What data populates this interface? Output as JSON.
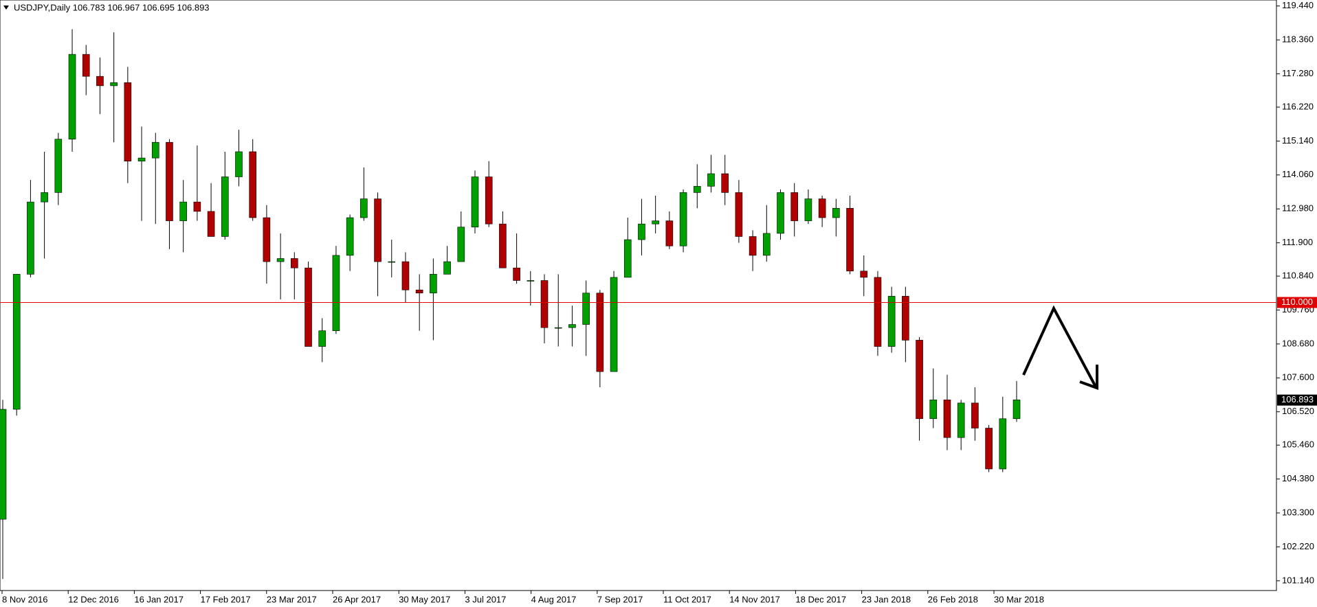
{
  "chart_data": {
    "type": "candlestick",
    "title": "USDJPY,Daily  106.783 106.967 106.695 106.893",
    "xticks": [
      "8 Nov 2016",
      "12 Dec 2016",
      "16 Jan 2017",
      "17 Feb 2017",
      "23 Mar 2017",
      "26 Apr 2017",
      "30 May 2017",
      "3 Jul 2017",
      "4 Aug 2017",
      "7 Sep 2017",
      "11 Oct 2017",
      "14 Nov 2017",
      "18 Dec 2017",
      "23 Jan 2018",
      "26 Feb 2018",
      "30 Mar 2018"
    ],
    "open": [
      103.1,
      106.6,
      110.9,
      113.2,
      113.5,
      115.2,
      117.9,
      117.2,
      116.9,
      117.0,
      114.5,
      114.6,
      115.1,
      112.6,
      113.2,
      112.9,
      112.1,
      114.0,
      114.8,
      112.7,
      111.3,
      111.4,
      111.1,
      108.6,
      109.1,
      111.5,
      112.7,
      113.3,
      111.3,
      111.3,
      110.4,
      110.3,
      110.9,
      111.3,
      112.4,
      114.0,
      112.5,
      111.1,
      110.7,
      110.7,
      109.2,
      109.2,
      109.3,
      110.3,
      107.8,
      110.8,
      112.0,
      112.5,
      112.6,
      111.8,
      113.5,
      113.7,
      114.1,
      113.5,
      112.1,
      111.5,
      112.2,
      113.5,
      112.6,
      113.3,
      112.7,
      113.0,
      111.0,
      110.8,
      108.6,
      110.2,
      108.8,
      106.3,
      106.9,
      105.7,
      106.8,
      106.0,
      104.7,
      106.3
    ],
    "high": [
      106.9,
      110.9,
      113.9,
      114.8,
      115.4,
      118.7,
      118.2,
      117.8,
      118.6,
      117.5,
      115.6,
      115.4,
      115.2,
      113.9,
      115.0,
      113.8,
      114.8,
      115.5,
      115.2,
      113.1,
      112.2,
      111.6,
      111.3,
      109.5,
      111.8,
      112.8,
      114.3,
      113.5,
      112.0,
      111.6,
      110.9,
      111.4,
      111.8,
      112.9,
      114.2,
      114.5,
      112.9,
      112.2,
      111.0,
      110.9,
      110.9,
      109.9,
      110.7,
      110.4,
      111.0,
      112.7,
      113.3,
      113.4,
      112.9,
      113.6,
      114.4,
      114.7,
      114.7,
      113.9,
      112.3,
      113.1,
      113.6,
      113.8,
      113.6,
      113.4,
      113.3,
      113.4,
      111.5,
      111.0,
      110.5,
      110.5,
      108.9,
      107.9,
      107.7,
      106.9,
      107.3,
      106.1,
      107.0,
      107.5
    ],
    "low": [
      101.2,
      106.4,
      110.8,
      111.4,
      113.1,
      114.8,
      116.6,
      116.0,
      115.1,
      113.8,
      112.6,
      112.5,
      111.7,
      111.6,
      112.6,
      112.1,
      112.0,
      113.7,
      112.6,
      110.6,
      110.1,
      110.1,
      108.7,
      108.1,
      109.0,
      111.0,
      112.6,
      110.2,
      110.8,
      110.0,
      109.1,
      108.8,
      110.9,
      111.3,
      112.2,
      112.4,
      111.1,
      110.6,
      109.9,
      108.7,
      108.6,
      108.6,
      108.3,
      107.3,
      107.8,
      110.8,
      111.5,
      112.2,
      111.7,
      111.6,
      113.0,
      113.5,
      113.1,
      111.9,
      111.0,
      111.3,
      112.0,
      112.1,
      112.5,
      112.4,
      112.1,
      110.9,
      110.2,
      108.3,
      108.4,
      108.1,
      105.6,
      106.0,
      105.3,
      105.3,
      105.6,
      104.6,
      104.6,
      106.2
    ],
    "close": [
      106.6,
      110.9,
      113.2,
      113.5,
      115.2,
      117.9,
      117.2,
      116.9,
      117.0,
      114.5,
      114.6,
      115.1,
      112.6,
      113.2,
      112.9,
      112.1,
      114.0,
      114.8,
      112.7,
      111.3,
      111.4,
      111.1,
      108.6,
      109.1,
      111.5,
      112.7,
      113.3,
      111.3,
      111.3,
      110.4,
      110.3,
      110.9,
      111.3,
      112.4,
      114.0,
      112.5,
      111.1,
      110.7,
      110.7,
      109.2,
      109.2,
      109.3,
      110.3,
      107.8,
      110.8,
      112.0,
      112.5,
      112.6,
      111.8,
      113.5,
      113.7,
      114.1,
      113.5,
      112.1,
      111.5,
      112.2,
      113.5,
      112.6,
      113.3,
      112.7,
      113.0,
      111.0,
      110.8,
      108.6,
      110.2,
      108.8,
      106.3,
      106.9,
      105.7,
      106.8,
      106.0,
      104.7,
      106.3,
      106.9
    ],
    "up_color": "#00a000",
    "down_color": "#b00000",
    "ylim": [
      100.83,
      119.63
    ],
    "yticks": [
      {
        "value": 119.44,
        "label": "119.440"
      },
      {
        "value": 118.36,
        "label": "118.360"
      },
      {
        "value": 117.28,
        "label": "117.280"
      },
      {
        "value": 116.22,
        "label": "116.220"
      },
      {
        "value": 115.14,
        "label": "115.140"
      },
      {
        "value": 114.06,
        "label": "114.060"
      },
      {
        "value": 112.98,
        "label": "112.980"
      },
      {
        "value": 111.9,
        "label": "111.900"
      },
      {
        "value": 110.84,
        "label": "110.840"
      },
      {
        "value": 109.76,
        "label": "109.760"
      },
      {
        "value": 108.68,
        "label": "108.680"
      },
      {
        "value": 107.6,
        "label": "107.600"
      },
      {
        "value": 106.52,
        "label": "106.520"
      },
      {
        "value": 105.46,
        "label": "105.460"
      },
      {
        "value": 104.38,
        "label": "104.380"
      },
      {
        "value": 103.3,
        "label": "103.300"
      },
      {
        "value": 102.22,
        "label": "102.220"
      },
      {
        "value": 101.14,
        "label": "101.140"
      }
    ],
    "hline": {
      "value": 110,
      "label": "110.000",
      "color": "#e00000"
    },
    "last_price": {
      "value": 106.893,
      "label": "106.893"
    }
  }
}
